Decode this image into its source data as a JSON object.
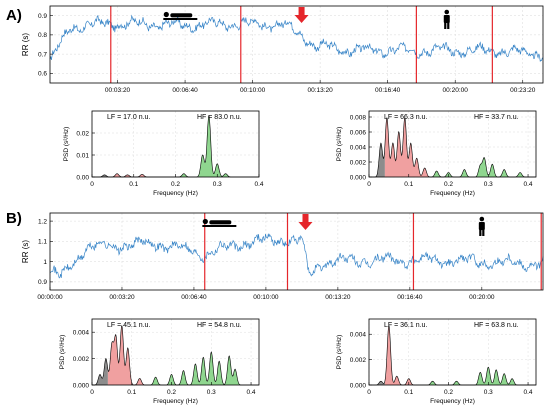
{
  "panels": [
    {
      "id": "A",
      "label": "A)",
      "rr": {
        "ylabel": "RR (s)",
        "y_ticks": [
          "0.9",
          "0.8",
          "0.7",
          "0.6"
        ],
        "y_tick_values": [
          0.9,
          0.8,
          0.7,
          0.6
        ],
        "ylim": [
          0.55,
          0.95
        ],
        "x_ticks": [
          "00:03:20",
          "00:06:40",
          "00:10:00",
          "00:13:20",
          "00:16:40",
          "00:20:00",
          "00:23:20"
        ],
        "x_tick_seconds": [
          200,
          400,
          600,
          800,
          1000,
          1200,
          1400
        ],
        "xlim_seconds": [
          0,
          1460
        ],
        "red_lines_seconds": [
          180,
          565,
          1085,
          1310
        ],
        "arrow_seconds": 745,
        "supine_icon_seconds": 380,
        "standing_icon_seconds": 1175,
        "series_color": "#3a86c8",
        "marker_color": "#e5262b"
      },
      "psd": [
        {
          "lf_label": "LF = 17.0 n.u.",
          "hf_label": "HF = 83.0 n.u.",
          "ylabel": "PSD (s²/Hz)",
          "xlabel": "Frequency (Hz)",
          "y_ticks": [
            "0.02",
            "0.01",
            "0.00"
          ],
          "y_tick_values": [
            0.02,
            0.01,
            0.0
          ],
          "ylim": [
            0,
            0.03
          ],
          "x_ticks": [
            "0",
            "0.1",
            "0.2",
            "0.3",
            "0.4"
          ],
          "x_tick_values": [
            0,
            0.1,
            0.2,
            0.3,
            0.4
          ],
          "xlim": [
            0,
            0.4
          ],
          "vlf_end": 0.04,
          "lf_end": 0.15,
          "peaks": [
            [
              0.03,
              0.001
            ],
            [
              0.06,
              0.0015
            ],
            [
              0.085,
              0.001
            ],
            [
              0.12,
              0.0012
            ],
            [
              0.22,
              0.0015
            ],
            [
              0.265,
              0.01
            ],
            [
              0.28,
              0.028
            ],
            [
              0.3,
              0.006
            ],
            [
              0.32,
              0.0015
            ]
          ]
        },
        {
          "lf_label": "LF = 66.3 n.u.",
          "hf_label": "HF = 33.7 n.u.",
          "ylabel": "PSD (s²/Hz)",
          "xlabel": "Frequency (Hz)",
          "y_ticks": [
            "0.008",
            "0.006",
            "0.004",
            "0.002",
            "0.000"
          ],
          "y_tick_values": [
            0.008,
            0.006,
            0.004,
            0.002,
            0.0
          ],
          "ylim": [
            0,
            0.0088
          ],
          "x_ticks": [
            "0",
            "0.1",
            "0.2",
            "0.3",
            "0.4"
          ],
          "x_tick_values": [
            0,
            0.1,
            0.2,
            0.3,
            0.4
          ],
          "xlim": [
            0,
            0.42
          ],
          "vlf_end": 0.04,
          "lf_end": 0.15,
          "peaks": [
            [
              0.03,
              0.0045
            ],
            [
              0.045,
              0.0079
            ],
            [
              0.06,
              0.0045
            ],
            [
              0.075,
              0.006
            ],
            [
              0.09,
              0.0079
            ],
            [
              0.105,
              0.0045
            ],
            [
              0.12,
              0.0025
            ],
            [
              0.14,
              0.0012
            ],
            [
              0.17,
              0.0008
            ],
            [
              0.2,
              0.0006
            ],
            [
              0.24,
              0.001
            ],
            [
              0.28,
              0.0015
            ],
            [
              0.29,
              0.0025
            ],
            [
              0.31,
              0.0017
            ],
            [
              0.34,
              0.001
            ],
            [
              0.38,
              0.0006
            ]
          ]
        }
      ]
    },
    {
      "id": "B",
      "label": "B)",
      "rr": {
        "ylabel": "RR (s)",
        "y_ticks": [
          "1.2",
          "1.1",
          "1",
          "0.9"
        ],
        "y_tick_values": [
          1.2,
          1.1,
          1.0,
          0.9
        ],
        "ylim": [
          0.86,
          1.24
        ],
        "x_ticks": [
          "00:00:00",
          "00:03:20",
          "00:06:40",
          "00:10:00",
          "00:13:20",
          "00:16:40",
          "00:20:00"
        ],
        "x_tick_seconds": [
          0,
          200,
          400,
          600,
          800,
          1000,
          1200
        ],
        "xlim_seconds": [
          0,
          1370
        ],
        "red_lines_seconds": [
          430,
          660,
          1010,
          1365
        ],
        "arrow_seconds": 710,
        "supine_icon_seconds": 465,
        "standing_icon_seconds": 1200,
        "series_color": "#3a86c8",
        "marker_color": "#e5262b"
      },
      "psd": [
        {
          "lf_label": "LF = 45.1 n.u.",
          "hf_label": "HF = 54.8 n.u.",
          "ylabel": "PSD (s²/Hz)",
          "xlabel": "Frequency (Hz)",
          "y_ticks": [
            "0.004",
            "0.002",
            "0.000"
          ],
          "y_tick_values": [
            0.004,
            0.002,
            0.0
          ],
          "ylim": [
            0,
            0.005
          ],
          "x_ticks": [
            "0",
            "0.1",
            "0.2",
            "0.3",
            "0.4"
          ],
          "x_tick_values": [
            0,
            0.1,
            0.2,
            0.3,
            0.4
          ],
          "xlim": [
            0,
            0.42
          ],
          "vlf_end": 0.04,
          "lf_end": 0.15,
          "peaks": [
            [
              0.02,
              0.0008
            ],
            [
              0.035,
              0.002
            ],
            [
              0.05,
              0.003
            ],
            [
              0.06,
              0.0036
            ],
            [
              0.075,
              0.0045
            ],
            [
              0.09,
              0.0028
            ],
            [
              0.12,
              0.0005
            ],
            [
              0.16,
              0.0006
            ],
            [
              0.2,
              0.0008
            ],
            [
              0.23,
              0.0011
            ],
            [
              0.26,
              0.0016
            ],
            [
              0.28,
              0.0021
            ],
            [
              0.3,
              0.0025
            ],
            [
              0.32,
              0.0018
            ],
            [
              0.345,
              0.0022
            ],
            [
              0.36,
              0.0012
            ]
          ]
        },
        {
          "lf_label": "LF = 36.1 n.u.",
          "hf_label": "HF = 63.8 n.u.",
          "ylabel": "PSD (s²/Hz)",
          "xlabel": "Frequency (Hz)",
          "y_ticks": [
            "0.004",
            "0.002",
            "0.000"
          ],
          "y_tick_values": [
            0.004,
            0.002,
            0.0
          ],
          "ylim": [
            0,
            0.0052
          ],
          "x_ticks": [
            "0",
            "0.1",
            "0.2",
            "0.3",
            "0.4"
          ],
          "x_tick_values": [
            0,
            0.1,
            0.2,
            0.3,
            0.4
          ],
          "xlim": [
            0,
            0.42
          ],
          "vlf_end": 0.04,
          "lf_end": 0.15,
          "peaks": [
            [
              0.03,
              0.0003
            ],
            [
              0.05,
              0.0047
            ],
            [
              0.07,
              0.0007
            ],
            [
              0.1,
              0.0005
            ],
            [
              0.16,
              0.0003
            ],
            [
              0.22,
              0.0003
            ],
            [
              0.28,
              0.001
            ],
            [
              0.3,
              0.0014
            ],
            [
              0.32,
              0.0012
            ],
            [
              0.34,
              0.0009
            ],
            [
              0.36,
              0.0005
            ]
          ]
        }
      ]
    }
  ],
  "chart_data": [
    {
      "type": "line",
      "panel": "A",
      "ylabel": "RR (s)",
      "ylim": [
        0.55,
        0.95
      ],
      "x_ticks": [
        "00:03:20",
        "00:06:40",
        "00:10:00",
        "00:13:20",
        "00:16:40",
        "00:20:00",
        "00:23:20"
      ]
    },
    {
      "type": "area",
      "panel": "A",
      "ylabel": "PSD (s²/Hz)",
      "xlabel": "Frequency (Hz)",
      "xlim": [
        0,
        0.4
      ],
      "annotations": [
        "LF = 17.0 n.u.",
        "HF = 83.0 n.u."
      ]
    },
    {
      "type": "area",
      "panel": "A",
      "ylabel": "PSD (s²/Hz)",
      "xlabel": "Frequency (Hz)",
      "xlim": [
        0,
        0.42
      ],
      "annotations": [
        "LF = 66.3 n.u.",
        "HF = 33.7 n.u."
      ]
    },
    {
      "type": "line",
      "panel": "B",
      "ylabel": "RR (s)",
      "ylim": [
        0.86,
        1.24
      ],
      "x_ticks": [
        "00:00:00",
        "00:03:20",
        "00:06:40",
        "00:10:00",
        "00:13:20",
        "00:16:40",
        "00:20:00"
      ]
    },
    {
      "type": "area",
      "panel": "B",
      "ylabel": "PSD (s²/Hz)",
      "xlabel": "Frequency (Hz)",
      "xlim": [
        0,
        0.42
      ],
      "annotations": [
        "LF = 45.1 n.u.",
        "HF = 54.8 n.u."
      ]
    },
    {
      "type": "area",
      "panel": "B",
      "ylabel": "PSD (s²/Hz)",
      "xlabel": "Frequency (Hz)",
      "xlim": [
        0,
        0.42
      ],
      "annotations": [
        "LF = 36.1 n.u.",
        "HF = 63.8 n.u."
      ]
    }
  ]
}
